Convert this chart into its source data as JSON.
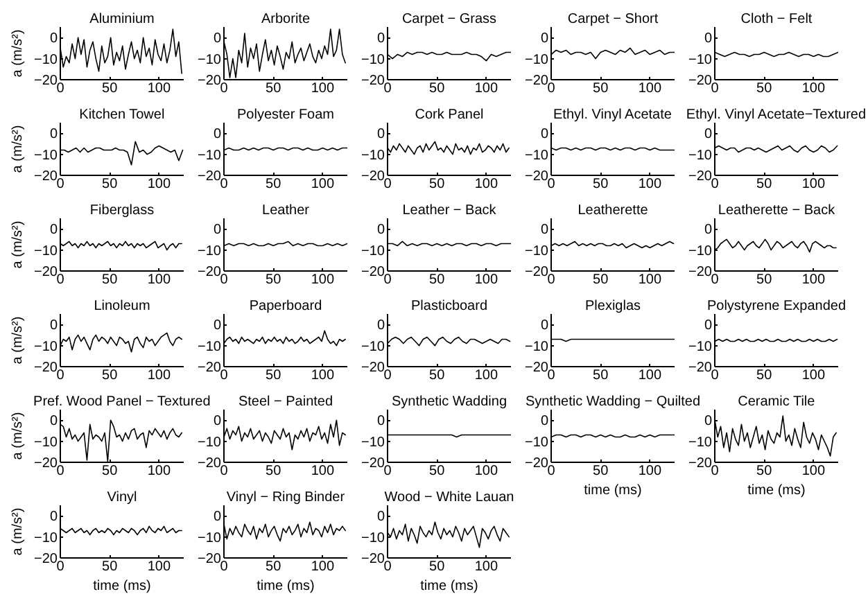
{
  "chart_data": [
    {
      "type": "line",
      "title": "Aluminium",
      "ylabel": "a (m/s²)",
      "color": "#000000",
      "xlim": [
        0,
        125
      ],
      "ylim": [
        -20,
        5
      ],
      "xticks": [
        0,
        50,
        100
      ],
      "yticks": [
        -20,
        -10,
        0
      ],
      "x": [
        0,
        3,
        6,
        9,
        12,
        15,
        18,
        21,
        24,
        27,
        30,
        33,
        36,
        39,
        42,
        45,
        48,
        51,
        54,
        57,
        60,
        63,
        66,
        69,
        72,
        75,
        78,
        81,
        84,
        87,
        90,
        93,
        96,
        99,
        102,
        105,
        108,
        111,
        114,
        117,
        120,
        123
      ],
      "values": [
        -5,
        -14,
        -9,
        -12,
        -3,
        -10,
        0,
        -8,
        -1,
        -14,
        -6,
        -2,
        -10,
        -16,
        -4,
        -12,
        -9,
        0,
        -13,
        -7,
        -11,
        -4,
        -15,
        -8,
        -2,
        -10,
        -6,
        -12,
        0,
        -9,
        -5,
        -13,
        -1,
        -8,
        -11,
        -3,
        -12,
        -6,
        4,
        -9,
        -2,
        -17
      ]
    },
    {
      "type": "line",
      "title": "Arborite",
      "color": "#000000",
      "xlim": [
        0,
        125
      ],
      "ylim": [
        -20,
        5
      ],
      "xticks": [
        0,
        50,
        100
      ],
      "yticks": [
        -20,
        -10,
        0
      ],
      "x": [
        0,
        3,
        6,
        9,
        12,
        15,
        18,
        21,
        24,
        27,
        30,
        33,
        36,
        39,
        42,
        45,
        48,
        51,
        54,
        57,
        60,
        63,
        66,
        69,
        72,
        75,
        78,
        81,
        84,
        87,
        90,
        93,
        96,
        99,
        102,
        105,
        108,
        111,
        114,
        117,
        120,
        123
      ],
      "values": [
        -2,
        -8,
        -19,
        -10,
        -19,
        -6,
        -12,
        2,
        -14,
        -5,
        -10,
        -3,
        -16,
        -8,
        -1,
        -11,
        -6,
        -13,
        -4,
        -9,
        -15,
        -7,
        -10,
        -2,
        -12,
        -8,
        -5,
        -11,
        -7,
        -3,
        -9,
        -12,
        -6,
        -10,
        -4,
        -8,
        4,
        -9,
        -6,
        4,
        -8,
        -12
      ]
    },
    {
      "type": "line",
      "title": "Carpet − Grass",
      "color": "#000000",
      "xlim": [
        0,
        125
      ],
      "ylim": [
        -20,
        5
      ],
      "xticks": [
        0,
        50,
        100
      ],
      "yticks": [
        -20,
        -10,
        0
      ],
      "x": [
        0,
        5,
        10,
        15,
        20,
        25,
        30,
        35,
        40,
        45,
        50,
        55,
        60,
        65,
        70,
        75,
        80,
        85,
        90,
        95,
        100,
        105,
        110,
        115,
        120,
        125
      ],
      "values": [
        -8,
        -10,
        -8,
        -9,
        -7,
        -8,
        -7,
        -7,
        -8,
        -7,
        -8,
        -8,
        -7,
        -8,
        -8,
        -8,
        -7,
        -8,
        -8,
        -9,
        -11,
        -8,
        -9,
        -8,
        -7,
        -7
      ]
    },
    {
      "type": "line",
      "title": "Carpet − Short",
      "color": "#000000",
      "xlim": [
        0,
        125
      ],
      "ylim": [
        -20,
        5
      ],
      "xticks": [
        0,
        50,
        100
      ],
      "yticks": [
        -20,
        -10,
        0
      ],
      "x": [
        0,
        5,
        10,
        15,
        20,
        25,
        30,
        35,
        40,
        45,
        50,
        55,
        60,
        65,
        70,
        75,
        80,
        85,
        90,
        95,
        100,
        105,
        110,
        115,
        120,
        125
      ],
      "values": [
        -8,
        -6,
        -7,
        -6,
        -8,
        -7,
        -7,
        -8,
        -7,
        -10,
        -7,
        -6,
        -7,
        -8,
        -6,
        -7,
        -5,
        -8,
        -7,
        -6,
        -8,
        -7,
        -6,
        -8,
        -7,
        -7
      ]
    },
    {
      "type": "line",
      "title": "Cloth − Felt",
      "color": "#000000",
      "xlim": [
        0,
        125
      ],
      "ylim": [
        -20,
        5
      ],
      "xticks": [
        0,
        50,
        100
      ],
      "yticks": [
        -20,
        -10,
        0
      ],
      "x": [
        0,
        5,
        10,
        15,
        20,
        25,
        30,
        35,
        40,
        45,
        50,
        55,
        60,
        65,
        70,
        75,
        80,
        85,
        90,
        95,
        100,
        105,
        110,
        115,
        120,
        125
      ],
      "values": [
        -7,
        -8,
        -9,
        -8,
        -7,
        -8,
        -8,
        -9,
        -8,
        -8,
        -7,
        -8,
        -9,
        -8,
        -8,
        -7,
        -8,
        -9,
        -8,
        -8,
        -9,
        -8,
        -9,
        -9,
        -8,
        -7
      ]
    },
    {
      "type": "line",
      "title": "Kitchen Towel",
      "ylabel": "a (m/s²)",
      "color": "#000000",
      "xlim": [
        0,
        125
      ],
      "ylim": [
        -20,
        5
      ],
      "xticks": [
        0,
        50,
        100
      ],
      "yticks": [
        -20,
        -10,
        0
      ],
      "x": [
        0,
        4,
        8,
        12,
        16,
        20,
        24,
        28,
        32,
        36,
        40,
        44,
        48,
        52,
        56,
        60,
        64,
        68,
        72,
        76,
        80,
        84,
        88,
        92,
        96,
        100,
        104,
        108,
        112,
        116,
        120,
        124
      ],
      "values": [
        -8,
        -8,
        -9,
        -8,
        -7,
        -9,
        -7,
        -9,
        -8,
        -7,
        -7,
        -8,
        -8,
        -8,
        -7,
        -8,
        -8,
        -9,
        -15,
        -4,
        -9,
        -8,
        -10,
        -9,
        -7,
        -6,
        -7,
        -8,
        -9,
        -8,
        -13,
        -8
      ]
    },
    {
      "type": "line",
      "title": "Polyester Foam",
      "color": "#000000",
      "xlim": [
        0,
        125
      ],
      "ylim": [
        -20,
        5
      ],
      "xticks": [
        0,
        50,
        100
      ],
      "yticks": [
        -20,
        -10,
        0
      ],
      "x": [
        0,
        5,
        10,
        15,
        20,
        25,
        30,
        35,
        40,
        45,
        50,
        55,
        60,
        65,
        70,
        75,
        80,
        85,
        90,
        95,
        100,
        105,
        110,
        115,
        120,
        125
      ],
      "values": [
        -8,
        -7,
        -8,
        -8,
        -7,
        -8,
        -7,
        -8,
        -7,
        -7,
        -8,
        -7,
        -7,
        -8,
        -7,
        -7,
        -8,
        -7,
        -8,
        -8,
        -7,
        -8,
        -7,
        -8,
        -7,
        -7
      ]
    },
    {
      "type": "line",
      "title": "Cork Panel",
      "color": "#000000",
      "xlim": [
        0,
        125
      ],
      "ylim": [
        -20,
        5
      ],
      "xticks": [
        0,
        50,
        100
      ],
      "yticks": [
        -20,
        -10,
        0
      ],
      "x": [
        0,
        3,
        6,
        9,
        12,
        15,
        18,
        21,
        24,
        27,
        30,
        33,
        36,
        39,
        42,
        45,
        48,
        51,
        54,
        57,
        60,
        63,
        66,
        69,
        72,
        75,
        78,
        81,
        84,
        87,
        90,
        93,
        96,
        99,
        102,
        105,
        108,
        111,
        114,
        117,
        120,
        123
      ],
      "values": [
        -7,
        -9,
        -6,
        -8,
        -5,
        -7,
        -9,
        -6,
        -8,
        -10,
        -7,
        -6,
        -9,
        -5,
        -8,
        -6,
        -4,
        -8,
        -7,
        -9,
        -6,
        -8,
        -10,
        -5,
        -8,
        -7,
        -9,
        -6,
        -10,
        -7,
        -8,
        -5,
        -9,
        -8,
        -6,
        -7,
        -9,
        -6,
        -8,
        -5,
        -9,
        -7
      ]
    },
    {
      "type": "line",
      "title": "Ethyl. Vinyl Acetate",
      "color": "#000000",
      "xlim": [
        0,
        125
      ],
      "ylim": [
        -20,
        5
      ],
      "xticks": [
        0,
        50,
        100
      ],
      "yticks": [
        -20,
        -10,
        0
      ],
      "x": [
        0,
        5,
        10,
        15,
        20,
        25,
        30,
        35,
        40,
        45,
        50,
        55,
        60,
        65,
        70,
        75,
        80,
        85,
        90,
        95,
        100,
        105,
        110,
        115,
        120,
        125
      ],
      "values": [
        -7,
        -8,
        -7,
        -7,
        -8,
        -7,
        -8,
        -7,
        -7,
        -8,
        -7,
        -7,
        -8,
        -7,
        -8,
        -7,
        -7,
        -8,
        -7,
        -7,
        -8,
        -7,
        -8,
        -8,
        -8,
        -8
      ]
    },
    {
      "type": "line",
      "title": "Ethyl. Vinyl Acetate−Textured",
      "color": "#000000",
      "xlim": [
        0,
        125
      ],
      "ylim": [
        -20,
        5
      ],
      "xticks": [
        0,
        50,
        100
      ],
      "yticks": [
        -20,
        -10,
        0
      ],
      "x": [
        0,
        4,
        8,
        12,
        16,
        20,
        24,
        28,
        32,
        36,
        40,
        44,
        48,
        52,
        56,
        60,
        64,
        68,
        72,
        76,
        80,
        84,
        88,
        92,
        96,
        100,
        104,
        108,
        112,
        116,
        120,
        124
      ],
      "values": [
        -7,
        -6,
        -7,
        -8,
        -7,
        -7,
        -9,
        -8,
        -7,
        -7,
        -8,
        -7,
        -8,
        -9,
        -8,
        -7,
        -6,
        -8,
        -7,
        -6,
        -8,
        -9,
        -7,
        -6,
        -8,
        -9,
        -8,
        -6,
        -7,
        -9,
        -8,
        -6
      ]
    },
    {
      "type": "line",
      "title": "Fiberglass",
      "ylabel": "a (m/s²)",
      "color": "#000000",
      "xlim": [
        0,
        125
      ],
      "ylim": [
        -20,
        5
      ],
      "xticks": [
        0,
        50,
        100
      ],
      "yticks": [
        -20,
        -10,
        0
      ],
      "x": [
        0,
        3,
        6,
        9,
        12,
        15,
        18,
        21,
        24,
        27,
        30,
        33,
        36,
        39,
        42,
        45,
        48,
        51,
        54,
        57,
        60,
        63,
        66,
        69,
        72,
        75,
        78,
        81,
        84,
        87,
        90,
        93,
        96,
        99,
        102,
        105,
        108,
        111,
        114,
        117,
        120,
        123
      ],
      "values": [
        -7,
        -8,
        -7,
        -6,
        -8,
        -7,
        -9,
        -7,
        -8,
        -6,
        -8,
        -7,
        -9,
        -7,
        -8,
        -7,
        -6,
        -8,
        -7,
        -9,
        -7,
        -8,
        -6,
        -8,
        -7,
        -9,
        -7,
        -8,
        -7,
        -9,
        -8,
        -7,
        -6,
        -9,
        -8,
        -7,
        -10,
        -8,
        -7,
        -9,
        -7,
        -7
      ]
    },
    {
      "type": "line",
      "title": "Leather",
      "color": "#000000",
      "xlim": [
        0,
        125
      ],
      "ylim": [
        -20,
        5
      ],
      "xticks": [
        0,
        50,
        100
      ],
      "yticks": [
        -20,
        -10,
        0
      ],
      "x": [
        0,
        5,
        10,
        15,
        20,
        25,
        30,
        35,
        40,
        45,
        50,
        55,
        60,
        65,
        70,
        75,
        80,
        85,
        90,
        95,
        100,
        105,
        110,
        115,
        120,
        125
      ],
      "values": [
        -8,
        -7,
        -8,
        -7,
        -7,
        -8,
        -7,
        -8,
        -8,
        -7,
        -8,
        -7,
        -7,
        -6,
        -8,
        -7,
        -8,
        -7,
        -7,
        -8,
        -8,
        -7,
        -8,
        -7,
        -8,
        -7
      ]
    },
    {
      "type": "line",
      "title": "Leather − Back",
      "color": "#000000",
      "xlim": [
        0,
        125
      ],
      "ylim": [
        -20,
        5
      ],
      "xticks": [
        0,
        50,
        100
      ],
      "yticks": [
        -20,
        -10,
        0
      ],
      "x": [
        0,
        5,
        10,
        15,
        20,
        25,
        30,
        35,
        40,
        45,
        50,
        55,
        60,
        65,
        70,
        75,
        80,
        85,
        90,
        95,
        100,
        105,
        110,
        115,
        120,
        125
      ],
      "values": [
        -7,
        -7,
        -8,
        -6,
        -8,
        -7,
        -8,
        -7,
        -7,
        -8,
        -7,
        -8,
        -7,
        -8,
        -7,
        -7,
        -8,
        -7,
        -7,
        -8,
        -7,
        -7,
        -8,
        -7,
        -7,
        -7
      ]
    },
    {
      "type": "line",
      "title": "Leatherette",
      "color": "#000000",
      "xlim": [
        0,
        125
      ],
      "ylim": [
        -20,
        5
      ],
      "xticks": [
        0,
        50,
        100
      ],
      "yticks": [
        -20,
        -10,
        0
      ],
      "x": [
        0,
        4,
        8,
        12,
        16,
        20,
        24,
        28,
        32,
        36,
        40,
        44,
        48,
        52,
        56,
        60,
        64,
        68,
        72,
        76,
        80,
        84,
        88,
        92,
        96,
        100,
        104,
        108,
        112,
        116,
        120,
        124
      ],
      "values": [
        -8,
        -7,
        -8,
        -7,
        -8,
        -7,
        -6,
        -8,
        -7,
        -8,
        -7,
        -8,
        -7,
        -7,
        -8,
        -8,
        -7,
        -8,
        -7,
        -9,
        -8,
        -7,
        -8,
        -9,
        -8,
        -9,
        -8,
        -7,
        -8,
        -7,
        -6,
        -7
      ]
    },
    {
      "type": "line",
      "title": "Leatherette − Back",
      "color": "#000000",
      "xlim": [
        0,
        125
      ],
      "ylim": [
        -20,
        5
      ],
      "xticks": [
        0,
        50,
        100
      ],
      "yticks": [
        -20,
        -10,
        0
      ],
      "x": [
        0,
        3,
        6,
        9,
        12,
        15,
        18,
        21,
        24,
        27,
        30,
        33,
        36,
        39,
        42,
        45,
        48,
        51,
        54,
        57,
        60,
        63,
        66,
        69,
        72,
        75,
        78,
        81,
        84,
        87,
        90,
        93,
        96,
        99,
        102,
        105,
        108,
        111,
        114,
        117,
        120,
        123
      ],
      "values": [
        -10,
        -9,
        -7,
        -6,
        -5,
        -7,
        -9,
        -8,
        -6,
        -8,
        -10,
        -8,
        -7,
        -6,
        -8,
        -9,
        -7,
        -5,
        -7,
        -10,
        -8,
        -6,
        -7,
        -9,
        -8,
        -7,
        -6,
        -8,
        -9,
        -7,
        -6,
        -8,
        -11,
        -7,
        -6,
        -7,
        -8,
        -9,
        -8,
        -8,
        -9,
        -9
      ]
    },
    {
      "type": "line",
      "title": "Linoleum",
      "ylabel": "a (m/s²)",
      "color": "#000000",
      "xlim": [
        0,
        125
      ],
      "ylim": [
        -20,
        5
      ],
      "xticks": [
        0,
        50,
        100
      ],
      "yticks": [
        -20,
        -10,
        0
      ],
      "x": [
        0,
        3,
        6,
        9,
        12,
        15,
        18,
        21,
        24,
        27,
        30,
        33,
        36,
        39,
        42,
        45,
        48,
        51,
        54,
        57,
        60,
        63,
        66,
        69,
        72,
        75,
        78,
        81,
        84,
        87,
        90,
        93,
        96,
        99,
        102,
        105,
        108,
        111,
        114,
        117,
        120,
        123
      ],
      "values": [
        -10,
        -7,
        -8,
        -6,
        -12,
        -7,
        -5,
        -8,
        -6,
        -9,
        -12,
        -7,
        -5,
        -8,
        -6,
        -7,
        -9,
        -6,
        -8,
        -10,
        -6,
        -7,
        -9,
        -8,
        -13,
        -7,
        -6,
        -9,
        -11,
        -6,
        -8,
        -7,
        -10,
        -8,
        -6,
        -5,
        -4,
        -8,
        -10,
        -7,
        -6,
        -7
      ]
    },
    {
      "type": "line",
      "title": "Paperboard",
      "color": "#000000",
      "xlim": [
        0,
        125
      ],
      "ylim": [
        -20,
        5
      ],
      "xticks": [
        0,
        50,
        100
      ],
      "yticks": [
        -20,
        -10,
        0
      ],
      "x": [
        0,
        3,
        6,
        9,
        12,
        15,
        18,
        21,
        24,
        27,
        30,
        33,
        36,
        39,
        42,
        45,
        48,
        51,
        54,
        57,
        60,
        63,
        66,
        69,
        72,
        75,
        78,
        81,
        84,
        87,
        90,
        93,
        96,
        99,
        102,
        105,
        108,
        111,
        114,
        117,
        120,
        123
      ],
      "values": [
        -9,
        -7,
        -6,
        -8,
        -7,
        -9,
        -6,
        -8,
        -7,
        -8,
        -9,
        -7,
        -8,
        -6,
        -9,
        -7,
        -8,
        -6,
        -8,
        -7,
        -9,
        -6,
        -8,
        -7,
        -9,
        -8,
        -6,
        -8,
        -7,
        -9,
        -8,
        -7,
        -6,
        -8,
        -3,
        -7,
        -9,
        -8,
        -10,
        -7,
        -8,
        -7
      ]
    },
    {
      "type": "line",
      "title": "Plasticboard",
      "color": "#000000",
      "xlim": [
        0,
        125
      ],
      "ylim": [
        -20,
        5
      ],
      "xticks": [
        0,
        50,
        100
      ],
      "yticks": [
        -20,
        -10,
        0
      ],
      "x": [
        0,
        4,
        8,
        12,
        16,
        20,
        24,
        28,
        32,
        36,
        40,
        44,
        48,
        52,
        56,
        60,
        64,
        68,
        72,
        76,
        80,
        84,
        88,
        92,
        96,
        100,
        104,
        108,
        112,
        116,
        120,
        124
      ],
      "values": [
        -9,
        -7,
        -6,
        -7,
        -9,
        -7,
        -6,
        -8,
        -10,
        -7,
        -6,
        -8,
        -10,
        -7,
        -6,
        -8,
        -9,
        -7,
        -6,
        -8,
        -9,
        -7,
        -7,
        -8,
        -9,
        -8,
        -7,
        -8,
        -9,
        -7,
        -7,
        -8
      ]
    },
    {
      "type": "line",
      "title": "Plexiglas",
      "color": "#000000",
      "xlim": [
        0,
        125
      ],
      "ylim": [
        -20,
        5
      ],
      "xticks": [
        0,
        50,
        100
      ],
      "yticks": [
        -20,
        -10,
        0
      ],
      "x": [
        0,
        5,
        10,
        15,
        20,
        25,
        30,
        35,
        40,
        45,
        50,
        55,
        60,
        65,
        70,
        75,
        80,
        85,
        90,
        95,
        100,
        105,
        110,
        115,
        120,
        125
      ],
      "values": [
        -7,
        -7,
        -7,
        -8,
        -7,
        -7,
        -7,
        -7,
        -7,
        -7,
        -7,
        -7,
        -7,
        -7,
        -7,
        -7,
        -7,
        -7,
        -7,
        -7,
        -7,
        -7,
        -7,
        -7,
        -7,
        -7
      ]
    },
    {
      "type": "line",
      "title": "Polystyrene Expanded",
      "color": "#000000",
      "xlim": [
        0,
        125
      ],
      "ylim": [
        -20,
        5
      ],
      "xticks": [
        0,
        50,
        100
      ],
      "yticks": [
        -20,
        -10,
        0
      ],
      "x": [
        0,
        4,
        8,
        12,
        16,
        20,
        24,
        28,
        32,
        36,
        40,
        44,
        48,
        52,
        56,
        60,
        64,
        68,
        72,
        76,
        80,
        84,
        88,
        92,
        96,
        100,
        104,
        108,
        112,
        116,
        120,
        124
      ],
      "values": [
        -8,
        -7,
        -8,
        -7,
        -8,
        -8,
        -7,
        -8,
        -7,
        -8,
        -8,
        -7,
        -8,
        -7,
        -8,
        -8,
        -7,
        -8,
        -8,
        -7,
        -8,
        -7,
        -8,
        -8,
        -7,
        -8,
        -7,
        -8,
        -8,
        -7,
        -8,
        -7
      ]
    },
    {
      "type": "line",
      "title": "Pref. Wood Panel − Textured",
      "ylabel": "a (m/s²)",
      "color": "#000000",
      "xlim": [
        0,
        125
      ],
      "ylim": [
        -20,
        5
      ],
      "xticks": [
        0,
        50,
        100
      ],
      "yticks": [
        -20,
        -10,
        0
      ],
      "x": [
        0,
        3,
        6,
        9,
        12,
        15,
        18,
        21,
        24,
        27,
        30,
        33,
        36,
        39,
        42,
        45,
        48,
        51,
        54,
        57,
        60,
        63,
        66,
        69,
        72,
        75,
        78,
        81,
        84,
        87,
        90,
        93,
        96,
        99,
        102,
        105,
        108,
        111,
        114,
        117,
        120,
        123
      ],
      "values": [
        -2,
        -3,
        -8,
        -4,
        -9,
        -7,
        -10,
        -8,
        -6,
        -19,
        -2,
        -9,
        -7,
        -8,
        -10,
        -6,
        -19.5,
        0,
        -3,
        -8,
        -7,
        -10,
        -6,
        -9,
        -5,
        -4,
        -9,
        -7,
        -6,
        -13,
        -5,
        -7,
        -4,
        -6,
        -8,
        -5,
        -9,
        -6,
        -4,
        -7,
        -8,
        -6
      ]
    },
    {
      "type": "line",
      "title": "Steel − Painted",
      "color": "#000000",
      "xlim": [
        0,
        125
      ],
      "ylim": [
        -20,
        5
      ],
      "xticks": [
        0,
        50,
        100
      ],
      "yticks": [
        -20,
        -10,
        0
      ],
      "x": [
        0,
        3,
        6,
        9,
        12,
        15,
        18,
        21,
        24,
        27,
        30,
        33,
        36,
        39,
        42,
        45,
        48,
        51,
        54,
        57,
        60,
        63,
        66,
        69,
        72,
        75,
        78,
        81,
        84,
        87,
        90,
        93,
        96,
        99,
        102,
        105,
        108,
        111,
        114,
        117,
        120,
        123
      ],
      "values": [
        -8,
        -4,
        -9,
        -5,
        -7,
        -3,
        -10,
        -6,
        -8,
        -4,
        -9,
        -7,
        -5,
        -10,
        -6,
        -8,
        -11,
        -5,
        -7,
        -9,
        -4,
        -8,
        -6,
        -14,
        -7,
        -9,
        -5,
        -8,
        -4,
        -10,
        -6,
        -7,
        -3,
        -9,
        -6,
        -11,
        -2,
        -8,
        0,
        -12,
        -6,
        -7
      ]
    },
    {
      "type": "line",
      "title": "Synthetic Wadding",
      "color": "#000000",
      "xlim": [
        0,
        125
      ],
      "ylim": [
        -20,
        5
      ],
      "xticks": [
        0,
        50,
        100
      ],
      "yticks": [
        -20,
        -10,
        0
      ],
      "x": [
        0,
        5,
        10,
        15,
        20,
        25,
        30,
        35,
        40,
        45,
        50,
        55,
        60,
        65,
        70,
        75,
        80,
        85,
        90,
        95,
        100,
        105,
        110,
        115,
        120,
        125
      ],
      "values": [
        -7,
        -7,
        -7,
        -7,
        -7,
        -7,
        -7,
        -7,
        -7,
        -7,
        -7,
        -7,
        -7,
        -7,
        -8,
        -7,
        -7,
        -7,
        -7,
        -7,
        -7,
        -7,
        -7,
        -7,
        -7,
        -7
      ]
    },
    {
      "type": "line",
      "title": "Synthetic Wadding − Quilted",
      "xlabel": "time (ms)",
      "color": "#000000",
      "xlim": [
        0,
        125
      ],
      "ylim": [
        -20,
        5
      ],
      "xticks": [
        0,
        50,
        100
      ],
      "yticks": [
        -20,
        -10,
        0
      ],
      "x": [
        0,
        5,
        10,
        15,
        20,
        25,
        30,
        35,
        40,
        45,
        50,
        55,
        60,
        65,
        70,
        75,
        80,
        85,
        90,
        95,
        100,
        105,
        110,
        115,
        120,
        125
      ],
      "values": [
        -8,
        -7,
        -7,
        -8,
        -7,
        -7,
        -8,
        -7,
        -7,
        -8,
        -7,
        -8,
        -7,
        -8,
        -8,
        -7,
        -8,
        -8,
        -7,
        -8,
        -7,
        -8,
        -7,
        -7,
        -7,
        -7
      ]
    },
    {
      "type": "line",
      "title": "Ceramic Tile",
      "xlabel": "time (ms)",
      "color": "#000000",
      "xlim": [
        0,
        125
      ],
      "ylim": [
        -20,
        5
      ],
      "xticks": [
        0,
        50,
        100
      ],
      "yticks": [
        -20,
        -10,
        0
      ],
      "x": [
        0,
        3,
        6,
        9,
        12,
        15,
        18,
        21,
        24,
        27,
        30,
        33,
        36,
        39,
        42,
        45,
        48,
        51,
        54,
        57,
        60,
        63,
        66,
        69,
        72,
        75,
        78,
        81,
        84,
        87,
        90,
        93,
        96,
        99,
        102,
        105,
        108,
        111,
        114,
        117,
        120,
        123
      ],
      "values": [
        0,
        -8,
        -3,
        -13,
        -6,
        -15,
        -4,
        -9,
        -12,
        -2,
        -10,
        -6,
        -13,
        -8,
        -3,
        -11,
        -7,
        -14,
        -5,
        -9,
        -11,
        -6,
        -8,
        2,
        -10,
        -7,
        -12,
        -4,
        -9,
        -13,
        -1,
        -8,
        -11,
        -6,
        -9,
        -14,
        -7,
        -10,
        -13,
        -17,
        -8,
        -6
      ]
    },
    {
      "type": "line",
      "title": "Vinyl",
      "ylabel": "a (m/s²)",
      "xlabel": "time (ms)",
      "color": "#000000",
      "xlim": [
        0,
        125
      ],
      "ylim": [
        -20,
        5
      ],
      "xticks": [
        0,
        50,
        100
      ],
      "yticks": [
        -20,
        -10,
        0
      ],
      "x": [
        0,
        3,
        6,
        9,
        12,
        15,
        18,
        21,
        24,
        27,
        30,
        33,
        36,
        39,
        42,
        45,
        48,
        51,
        54,
        57,
        60,
        63,
        66,
        69,
        72,
        75,
        78,
        81,
        84,
        87,
        90,
        93,
        96,
        99,
        102,
        105,
        108,
        111,
        114,
        117,
        120,
        123
      ],
      "values": [
        -6,
        -7,
        -8,
        -7,
        -6,
        -8,
        -7,
        -6,
        -8,
        -7,
        -9,
        -7,
        -6,
        -8,
        -7,
        -8,
        -6,
        -7,
        -9,
        -7,
        -8,
        -6,
        -7,
        -8,
        -6,
        -7,
        -9,
        -7,
        -6,
        -8,
        -5,
        -7,
        -8,
        -6,
        -7,
        -5,
        -8,
        -7,
        -6,
        -8,
        -7,
        -7
      ]
    },
    {
      "type": "line",
      "title": "Vinyl − Ring Binder",
      "xlabel": "time (ms)",
      "color": "#000000",
      "xlim": [
        0,
        125
      ],
      "ylim": [
        -20,
        5
      ],
      "xticks": [
        0,
        50,
        100
      ],
      "yticks": [
        -20,
        -10,
        0
      ],
      "x": [
        0,
        3,
        6,
        9,
        12,
        15,
        18,
        21,
        24,
        27,
        30,
        33,
        36,
        39,
        42,
        45,
        48,
        51,
        54,
        57,
        60,
        63,
        66,
        69,
        72,
        75,
        78,
        81,
        84,
        87,
        90,
        93,
        96,
        99,
        102,
        105,
        108,
        111,
        114,
        117,
        120,
        123
      ],
      "values": [
        -4,
        -11,
        -6,
        -9,
        -5,
        -8,
        -10,
        -4,
        -7,
        -9,
        -5,
        -11,
        -6,
        -8,
        -4,
        -10,
        -7,
        -5,
        -9,
        -12,
        -6,
        -8,
        -5,
        -9,
        -7,
        -4,
        -10,
        -6,
        -8,
        -3,
        -9,
        -6,
        -7,
        -10,
        -5,
        -8,
        -4,
        -9,
        -6,
        -7,
        -5,
        -7
      ]
    },
    {
      "type": "line",
      "title": "Wood − White Lauan",
      "xlabel": "time (ms)",
      "color": "#000000",
      "xlim": [
        0,
        125
      ],
      "ylim": [
        -20,
        5
      ],
      "xticks": [
        0,
        50,
        100
      ],
      "yticks": [
        -20,
        -10,
        0
      ],
      "x": [
        0,
        3,
        6,
        9,
        12,
        15,
        18,
        21,
        24,
        27,
        30,
        33,
        36,
        39,
        42,
        45,
        48,
        51,
        54,
        57,
        60,
        63,
        66,
        69,
        72,
        75,
        78,
        81,
        84,
        87,
        90,
        93,
        96,
        99,
        102,
        105,
        108,
        111,
        114,
        117,
        120,
        123
      ],
      "values": [
        -8,
        -10,
        -6,
        -11,
        -7,
        -9,
        -4,
        -12,
        -6,
        -9,
        -13,
        -5,
        -8,
        -10,
        -7,
        -9,
        -3,
        -8,
        -11,
        -6,
        -9,
        -7,
        -10,
        -5,
        -8,
        -12,
        -6,
        -9,
        -7,
        -5,
        -10,
        -15,
        -6,
        -8,
        -11,
        -7,
        -5,
        -9,
        -12,
        -6,
        -8,
        -10
      ]
    }
  ]
}
